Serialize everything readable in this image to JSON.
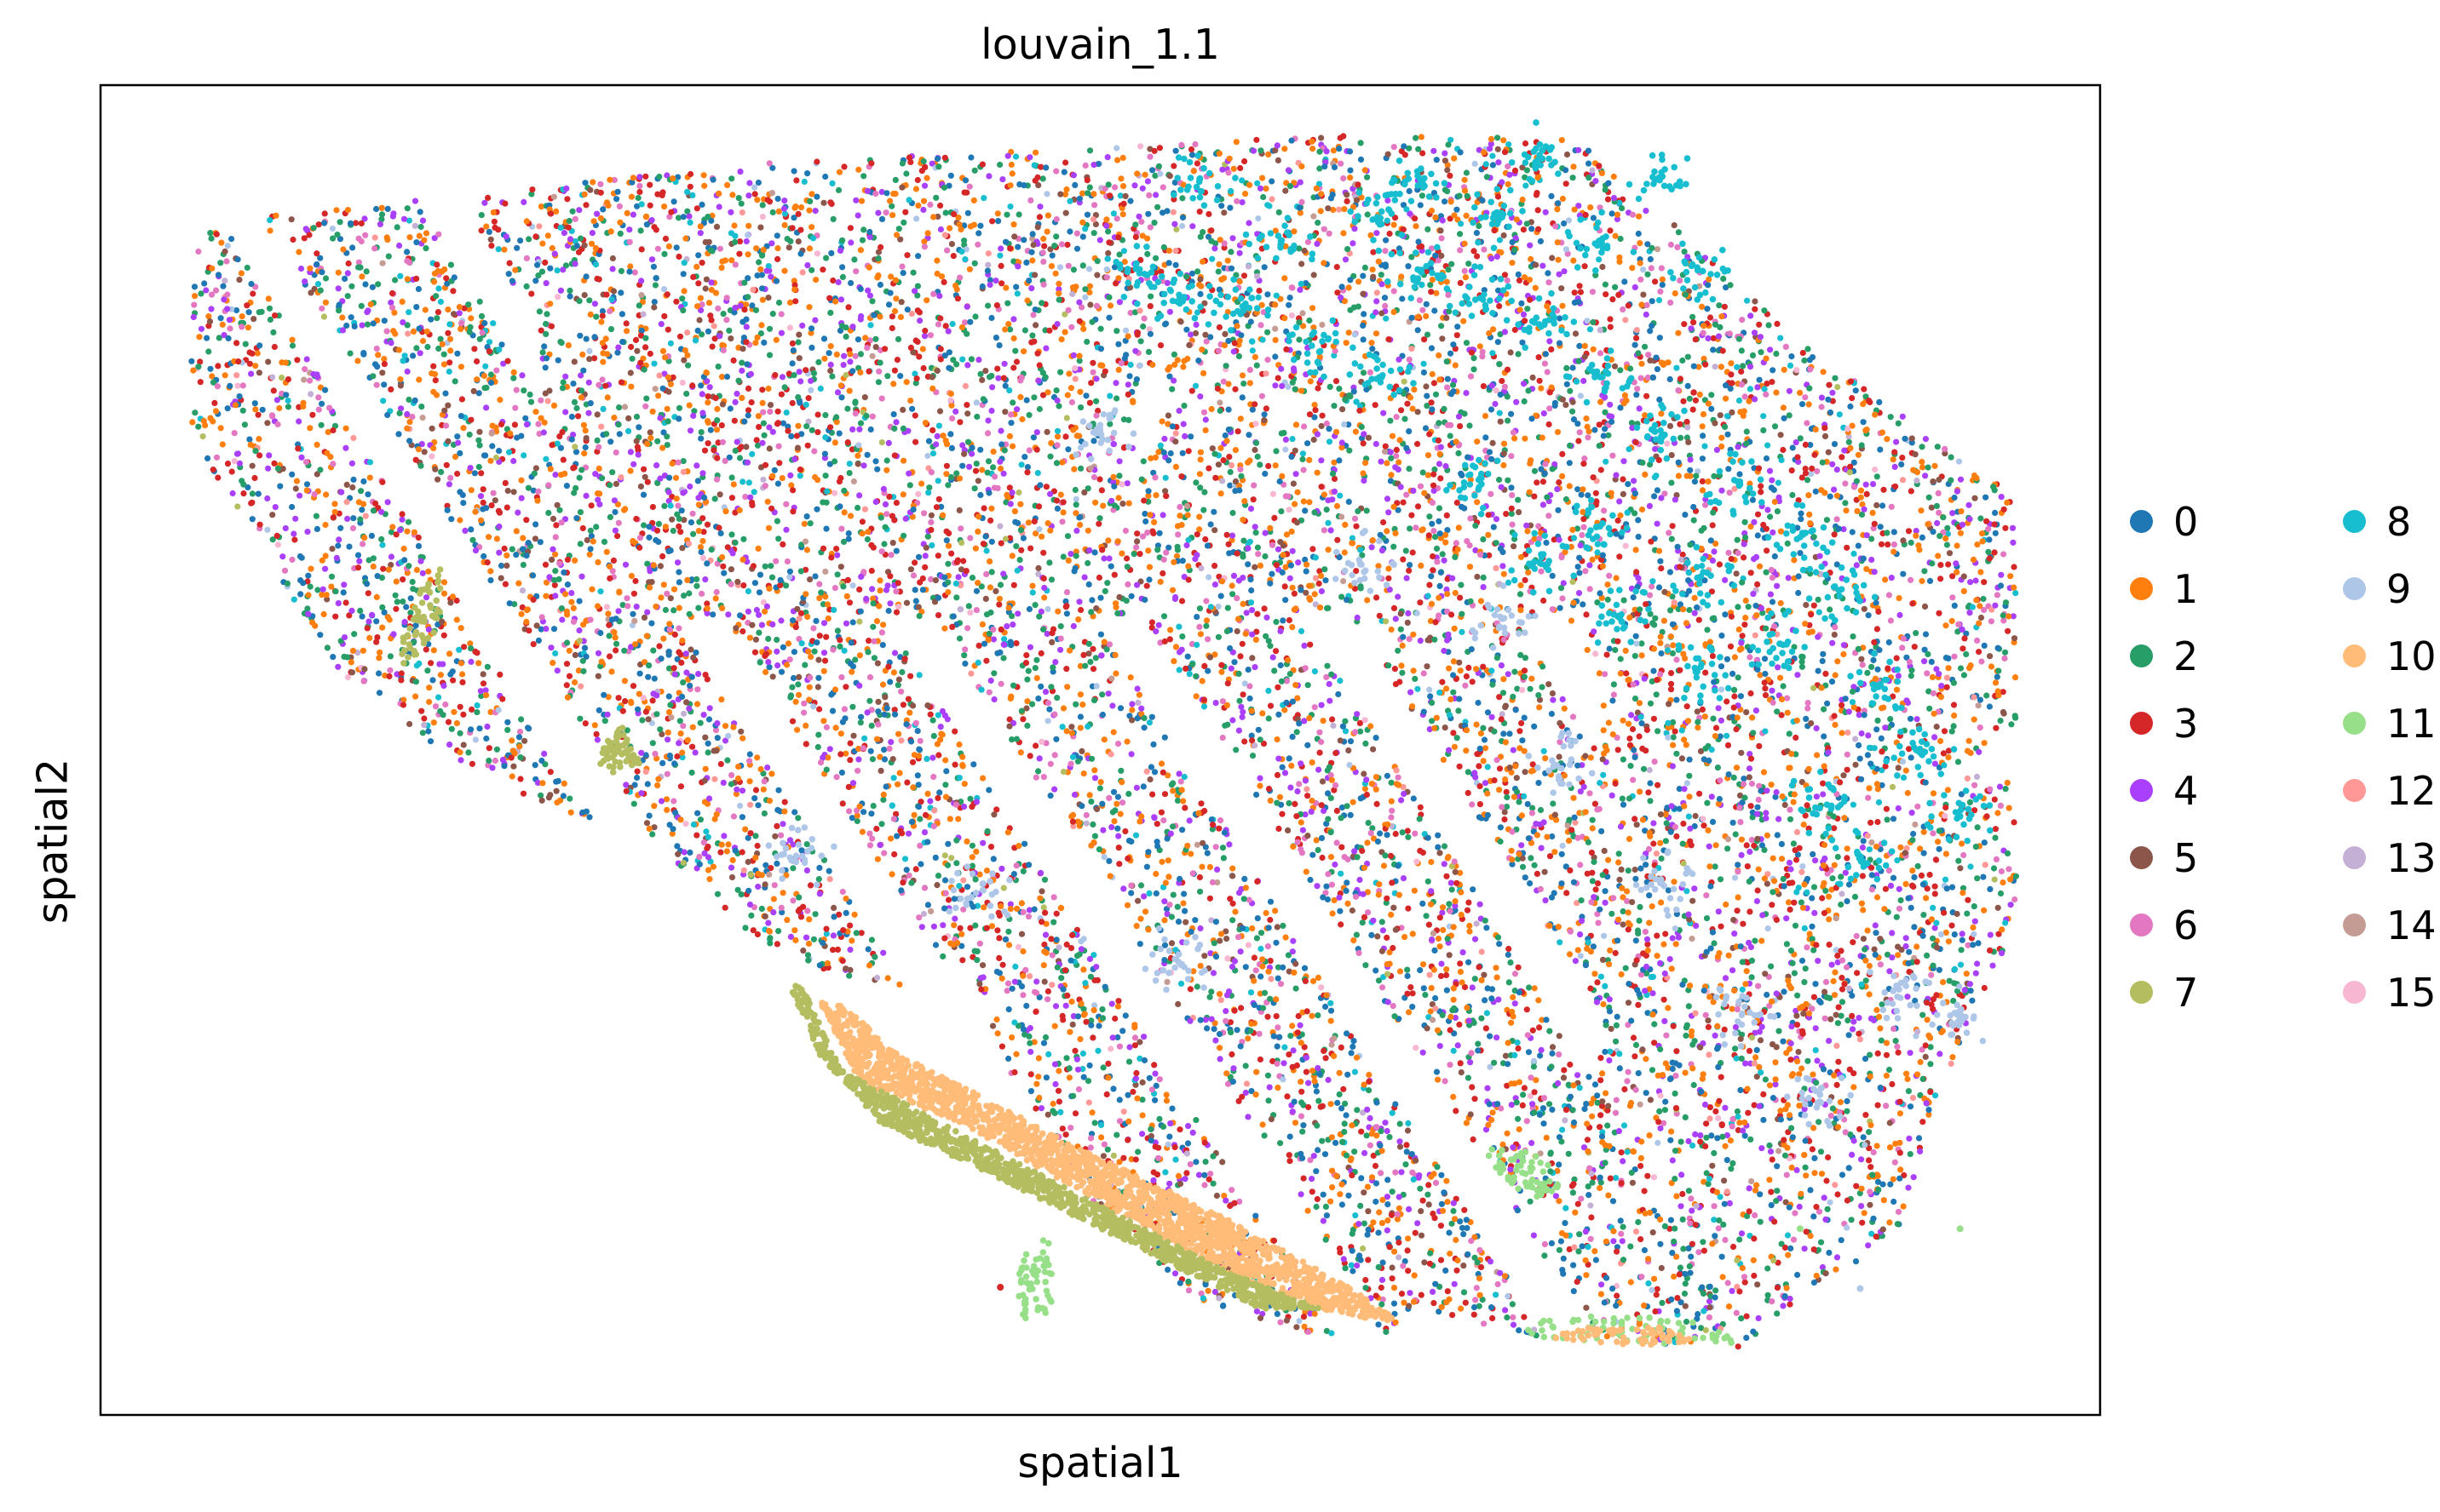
{
  "chart_data": {
    "type": "scatter",
    "title": "louvain_1.1",
    "xlabel": "spatial1",
    "ylabel": "spatial2",
    "grid": false,
    "ticks": false,
    "legend_position": "right",
    "categories": [
      "0",
      "1",
      "2",
      "3",
      "4",
      "5",
      "6",
      "7",
      "8",
      "9",
      "10",
      "11",
      "12",
      "13",
      "14",
      "15"
    ],
    "colors": [
      "#1f77b4",
      "#ff7f0e",
      "#279e68",
      "#d62728",
      "#aa40fc",
      "#8c564b",
      "#e377c2",
      "#b5bd61",
      "#17becf",
      "#aec7e8",
      "#ffbb78",
      "#98df8a",
      "#ff9896",
      "#c5b0d5",
      "#c49c94",
      "#f7b6d2"
    ],
    "tissue_outline": [
      [
        0.045,
        0.895
      ],
      [
        0.33,
        0.941
      ],
      [
        0.62,
        0.962
      ],
      [
        0.74,
        0.96
      ],
      [
        0.86,
        0.795
      ],
      [
        0.958,
        0.695
      ],
      [
        0.958,
        0.52
      ],
      [
        0.94,
        0.48
      ],
      [
        0.958,
        0.475
      ],
      [
        0.958,
        0.37
      ],
      [
        0.93,
        0.28
      ],
      [
        0.9,
        0.14
      ],
      [
        0.82,
        0.05
      ],
      [
        0.71,
        0.06
      ],
      [
        0.66,
        0.08
      ],
      [
        0.64,
        0.05
      ],
      [
        0.6,
        0.06
      ],
      [
        0.54,
        0.09
      ],
      [
        0.47,
        0.2
      ],
      [
        0.44,
        0.31
      ],
      [
        0.34,
        0.34
      ],
      [
        0.3,
        0.4
      ],
      [
        0.26,
        0.44
      ],
      [
        0.22,
        0.46
      ],
      [
        0.17,
        0.5
      ],
      [
        0.13,
        0.55
      ],
      [
        0.09,
        0.58
      ],
      [
        0.06,
        0.65
      ],
      [
        0.045,
        0.72
      ]
    ],
    "regions": [
      {
        "category": "10",
        "polygon": [
          [
            0.36,
            0.31
          ],
          [
            0.38,
            0.25
          ],
          [
            0.43,
            0.22
          ],
          [
            0.5,
            0.16
          ],
          [
            0.57,
            0.1
          ],
          [
            0.62,
            0.075
          ],
          [
            0.65,
            0.07
          ],
          [
            0.62,
            0.1
          ],
          [
            0.56,
            0.15
          ],
          [
            0.49,
            0.2
          ],
          [
            0.44,
            0.24
          ],
          [
            0.4,
            0.27
          ],
          [
            0.37,
            0.31
          ]
        ]
      },
      {
        "category": "7",
        "polygon": [
          [
            0.35,
            0.325
          ],
          [
            0.37,
            0.26
          ],
          [
            0.42,
            0.22
          ],
          [
            0.49,
            0.165
          ],
          [
            0.56,
            0.11
          ],
          [
            0.61,
            0.08
          ],
          [
            0.58,
            0.08
          ],
          [
            0.5,
            0.14
          ],
          [
            0.44,
            0.185
          ],
          [
            0.39,
            0.22
          ],
          [
            0.36,
            0.27
          ],
          [
            0.345,
            0.32
          ]
        ]
      },
      {
        "category": "11",
        "polygon": [
          [
            0.71,
            0.06
          ],
          [
            0.75,
            0.055
          ],
          [
            0.8,
            0.05
          ],
          [
            0.82,
            0.055
          ],
          [
            0.8,
            0.07
          ],
          [
            0.76,
            0.075
          ],
          [
            0.72,
            0.072
          ]
        ]
      },
      {
        "category": "10",
        "polygon": [
          [
            0.725,
            0.058
          ],
          [
            0.77,
            0.052
          ],
          [
            0.8,
            0.056
          ],
          [
            0.78,
            0.066
          ],
          [
            0.74,
            0.066
          ]
        ]
      },
      {
        "category": "11",
        "polygon": [
          [
            0.46,
            0.07
          ],
          [
            0.48,
            0.08
          ],
          [
            0.475,
            0.13
          ],
          [
            0.465,
            0.135
          ],
          [
            0.458,
            0.1
          ]
        ]
      },
      {
        "category": "7",
        "polygon": [
          [
            0.15,
            0.56
          ],
          [
            0.17,
            0.59
          ],
          [
            0.17,
            0.64
          ],
          [
            0.16,
            0.62
          ],
          [
            0.15,
            0.58
          ]
        ]
      },
      {
        "category": "7",
        "polygon": [
          [
            0.25,
            0.48
          ],
          [
            0.27,
            0.49
          ],
          [
            0.26,
            0.52
          ],
          [
            0.25,
            0.5
          ]
        ]
      },
      {
        "category": "11",
        "polygon": [
          [
            0.69,
            0.2
          ],
          [
            0.71,
            0.16
          ],
          [
            0.73,
            0.17
          ],
          [
            0.72,
            0.2
          ]
        ]
      }
    ],
    "dense_clusters": [
      {
        "category": "8",
        "points": [
          [
            0.52,
            0.86
          ],
          [
            0.54,
            0.84
          ],
          [
            0.57,
            0.83
          ],
          [
            0.61,
            0.8
          ],
          [
            0.64,
            0.78
          ],
          [
            0.66,
            0.86
          ],
          [
            0.69,
            0.84
          ],
          [
            0.72,
            0.82
          ],
          [
            0.75,
            0.78
          ],
          [
            0.78,
            0.74
          ],
          [
            0.82,
            0.7
          ],
          [
            0.85,
            0.66
          ],
          [
            0.87,
            0.62
          ],
          [
            0.84,
            0.58
          ],
          [
            0.8,
            0.56
          ],
          [
            0.76,
            0.6
          ],
          [
            0.72,
            0.64
          ],
          [
            0.69,
            0.7
          ],
          [
            0.75,
            0.67
          ],
          [
            0.8,
            0.63
          ],
          [
            0.89,
            0.55
          ],
          [
            0.91,
            0.5
          ],
          [
            0.93,
            0.45
          ],
          [
            0.88,
            0.42
          ],
          [
            0.86,
            0.46
          ],
          [
            0.64,
            0.9
          ],
          [
            0.7,
            0.9
          ],
          [
            0.75,
            0.88
          ],
          [
            0.8,
            0.86
          ],
          [
            0.59,
            0.88
          ],
          [
            0.55,
            0.93
          ],
          [
            0.66,
            0.93
          ],
          [
            0.72,
            0.95
          ],
          [
            0.78,
            0.93
          ]
        ]
      },
      {
        "category": "9",
        "points": [
          [
            0.5,
            0.74
          ],
          [
            0.63,
            0.64
          ],
          [
            0.7,
            0.6
          ],
          [
            0.73,
            0.49
          ],
          [
            0.78,
            0.4
          ],
          [
            0.82,
            0.3
          ],
          [
            0.86,
            0.24
          ],
          [
            0.9,
            0.32
          ],
          [
            0.93,
            0.3
          ],
          [
            0.35,
            0.42
          ],
          [
            0.44,
            0.39
          ],
          [
            0.54,
            0.34
          ]
        ]
      }
    ],
    "isolated_points": [
      {
        "category": "11",
        "x": 0.93,
        "y": 0.14
      },
      {
        "category": "9",
        "x": 0.88,
        "y": 0.095
      },
      {
        "category": "11",
        "x": 0.85,
        "y": 0.14
      },
      {
        "category": "3",
        "x": 0.45,
        "y": 0.096
      }
    ]
  }
}
